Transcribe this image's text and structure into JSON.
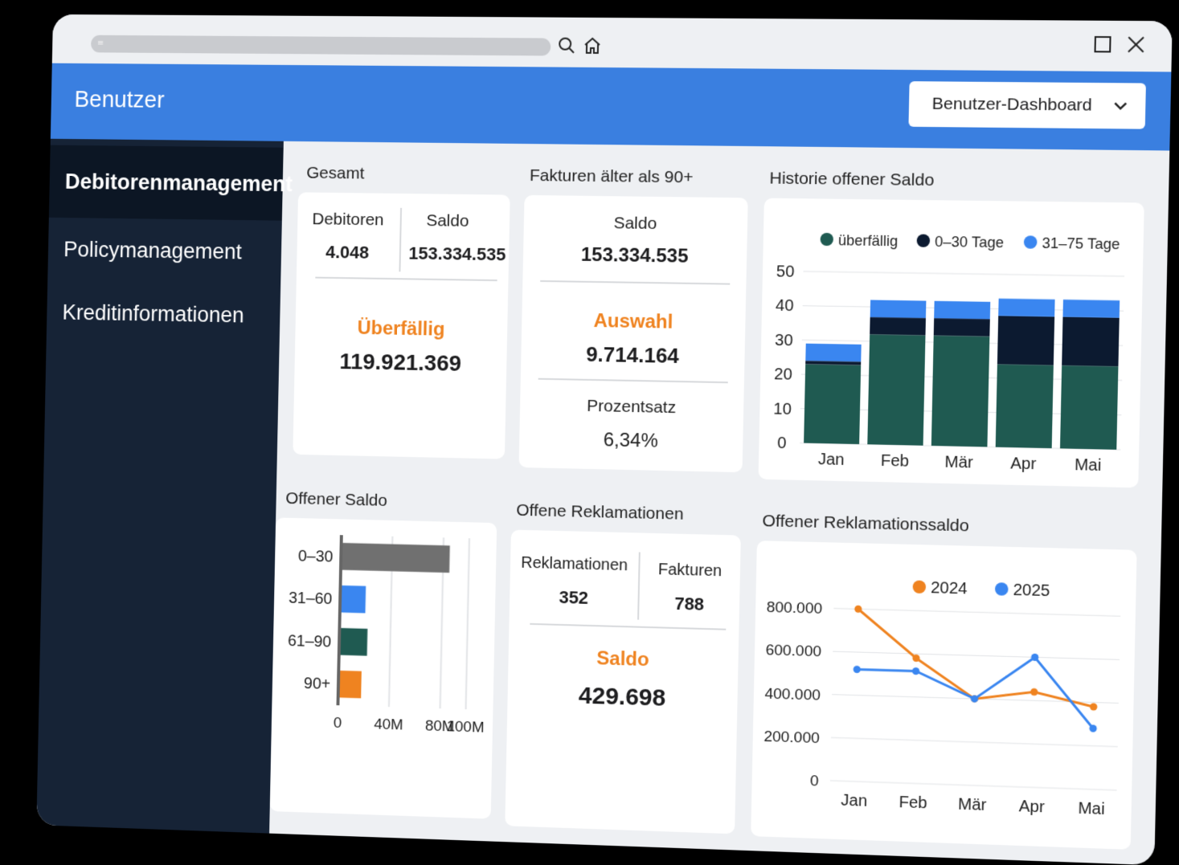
{
  "header": {
    "title": "Benutzer",
    "dashboard_select": "Benutzer-Dashboard"
  },
  "sidebar": {
    "items": [
      {
        "label": "Debitorenmanagement",
        "active": true
      },
      {
        "label": "Policymanagement",
        "active": false
      },
      {
        "label": "Kreditinformationen",
        "active": false
      }
    ]
  },
  "icons": [
    "search-icon",
    "home-icon",
    "maximize-icon",
    "close-icon",
    "chevron-down-icon"
  ],
  "colors": {
    "header": "#3a7fe0",
    "sidebar": "#162336",
    "accent_orange": "#ef8320",
    "teal": "#1f5a51",
    "navy": "#0c1a30",
    "blue": "#3a86f0"
  },
  "gesamt": {
    "title": "Gesamt",
    "debitoren_label": "Debitoren",
    "debitoren_value": "4.048",
    "saldo_label": "Saldo",
    "saldo_value": "153.334.535",
    "ueberfaellig_label": "Überfällig",
    "ueberfaellig_value": "119.921.369"
  },
  "fakturen90": {
    "title": "Fakturen älter als 90+",
    "saldo_label": "Saldo",
    "saldo_value": "153.334.535",
    "auswahl_label": "Auswahl",
    "auswahl_value": "9.714.164",
    "prozentsatz_label": "Prozentsatz",
    "prozentsatz_value": "6,34%"
  },
  "reklamationen": {
    "title": "Offene Reklamationen",
    "reklamationen_label": "Reklamationen",
    "reklamationen_value": "352",
    "fakturen_label": "Fakturen",
    "fakturen_value": "788",
    "saldo_label": "Saldo",
    "saldo_value": "429.698"
  },
  "chart_data": [
    {
      "type": "bar",
      "stacked": true,
      "title": "Historie offener Saldo",
      "categories": [
        "Jan",
        "Feb",
        "Mär",
        "Apr",
        "Mai"
      ],
      "series": [
        {
          "name": "überfällig",
          "color": "#1f5a51",
          "values": [
            23,
            32,
            32,
            24,
            24
          ]
        },
        {
          "name": "0–30 Tage",
          "color": "#0c1a30",
          "values": [
            1,
            5,
            5,
            14,
            14
          ]
        },
        {
          "name": "31–75 Tage",
          "color": "#3a86f0",
          "values": [
            5,
            5,
            5,
            5,
            5
          ]
        }
      ],
      "yticks": [
        "0",
        "10",
        "20",
        "30",
        "40",
        "50"
      ],
      "ylim": [
        0,
        50
      ],
      "legend": "top",
      "grid": true
    },
    {
      "type": "bar",
      "orientation": "horizontal",
      "title": "Offener Saldo",
      "categories": [
        "0–30",
        "31–60",
        "61–90",
        "90+"
      ],
      "values": [
        85,
        20,
        22,
        18
      ],
      "colors": [
        "#707070",
        "#3a86f0",
        "#1f5a51",
        "#ef8320"
      ],
      "xticks": [
        "0",
        "40M",
        "80M",
        "100M"
      ],
      "xlim": [
        0,
        115
      ],
      "grid": true
    },
    {
      "type": "line",
      "title": "Offener Reklamationssaldo",
      "categories": [
        "Jan",
        "Feb",
        "Mär",
        "Apr",
        "Mai"
      ],
      "series": [
        {
          "name": "2024",
          "color": "#ef8320",
          "values": [
            800000,
            580000,
            400000,
            440000,
            380000
          ]
        },
        {
          "name": "2025",
          "color": "#3a86f0",
          "values": [
            520000,
            520000,
            400000,
            600000,
            280000
          ]
        }
      ],
      "yticks": [
        "0",
        "200.000",
        "400.000",
        "600.000",
        "800.000"
      ],
      "ylim": [
        0,
        880000
      ],
      "legend": "top",
      "grid": true
    }
  ]
}
